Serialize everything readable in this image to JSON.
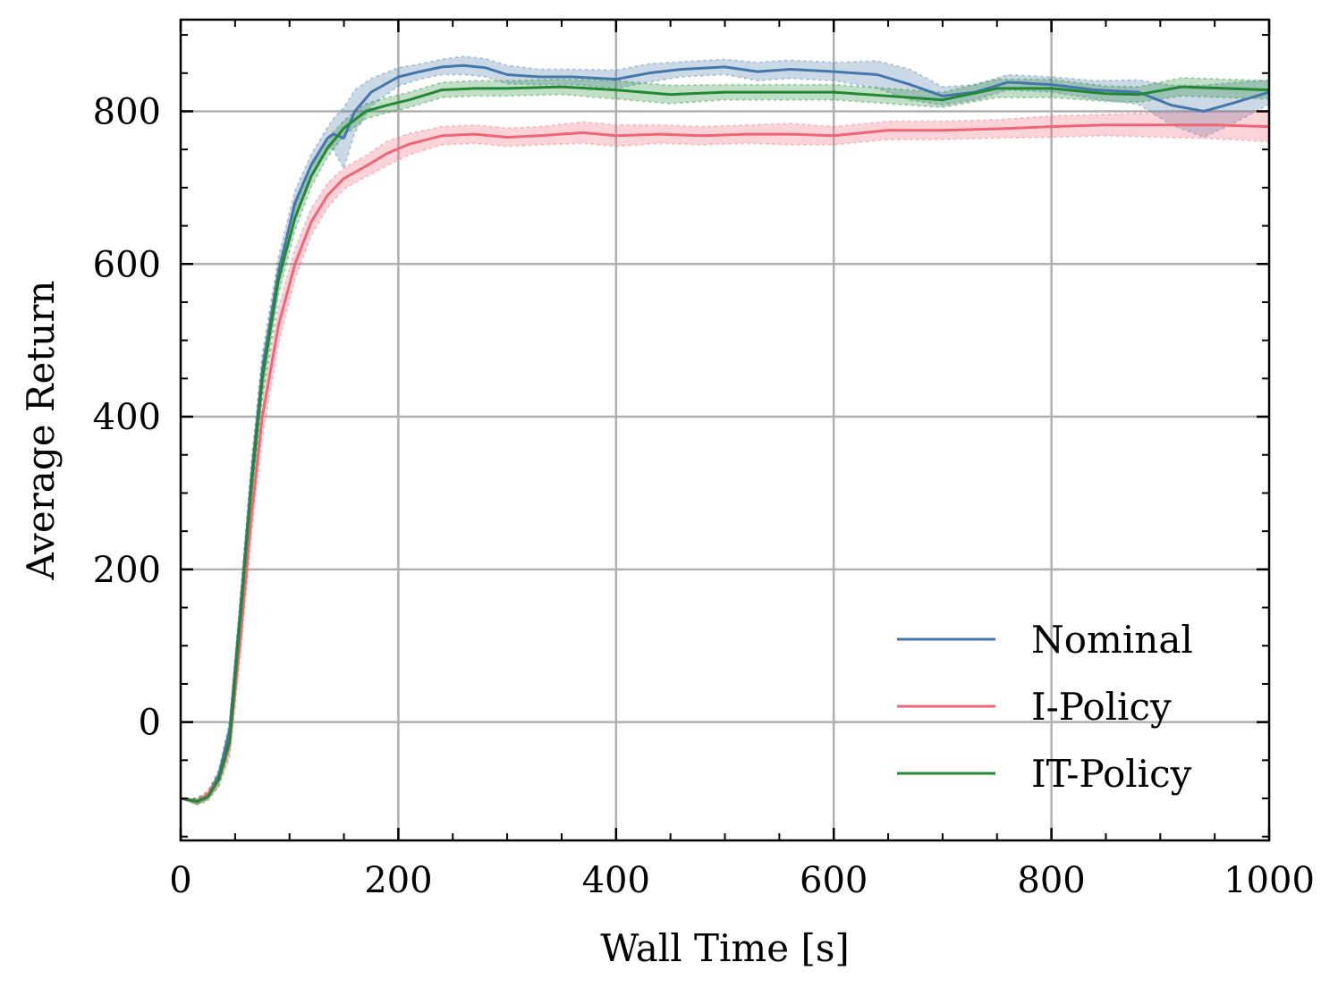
{
  "chart_data": {
    "type": "line",
    "title": "",
    "xlabel": "Wall Time [s]",
    "ylabel": "Average Return",
    "xlim": [
      0,
      1000
    ],
    "ylim": [
      -155,
      920
    ],
    "xticks": [
      0,
      200,
      400,
      600,
      800,
      1000
    ],
    "yticks": [
      0,
      200,
      400,
      600,
      800
    ],
    "grid": true,
    "legend_position": "lower-right",
    "series": [
      {
        "name": "Nominal",
        "color": "#4477AA",
        "x": [
          0,
          15,
          25,
          35,
          45,
          55,
          65,
          75,
          90,
          105,
          120,
          135,
          140,
          150,
          160,
          175,
          200,
          220,
          240,
          260,
          280,
          300,
          330,
          360,
          400,
          430,
          460,
          500,
          530,
          560,
          600,
          640,
          670,
          700,
          730,
          760,
          800,
          840,
          880,
          910,
          940,
          970,
          1000
        ],
        "y": [
          -100,
          -104,
          -96,
          -70,
          -10,
          150,
          320,
          460,
          590,
          680,
          730,
          765,
          770,
          765,
          800,
          825,
          845,
          852,
          858,
          860,
          857,
          848,
          845,
          845,
          842,
          850,
          855,
          858,
          852,
          855,
          852,
          848,
          835,
          820,
          825,
          838,
          835,
          828,
          825,
          808,
          800,
          812,
          825
        ],
        "band": [
          0,
          4,
          4,
          8,
          12,
          18,
          22,
          22,
          20,
          16,
          14,
          14,
          20,
          40,
          28,
          18,
          12,
          10,
          10,
          12,
          12,
          12,
          10,
          10,
          12,
          12,
          10,
          10,
          12,
          12,
          12,
          18,
          20,
          12,
          10,
          10,
          10,
          12,
          16,
          26,
          34,
          26,
          16
        ]
      },
      {
        "name": "I-Policy",
        "color": "#EE6677",
        "x": [
          0,
          15,
          25,
          35,
          45,
          55,
          65,
          75,
          90,
          105,
          120,
          135,
          150,
          170,
          190,
          210,
          240,
          270,
          300,
          330,
          370,
          400,
          440,
          480,
          520,
          560,
          600,
          650,
          700,
          750,
          800,
          850,
          900,
          950,
          1000
        ],
        "y": [
          -100,
          -104,
          -95,
          -75,
          -30,
          110,
          270,
          400,
          520,
          600,
          655,
          690,
          712,
          728,
          745,
          757,
          768,
          770,
          766,
          768,
          772,
          768,
          770,
          768,
          770,
          770,
          768,
          775,
          775,
          777,
          780,
          782,
          782,
          782,
          780
        ],
        "band": [
          0,
          4,
          6,
          10,
          16,
          24,
          28,
          28,
          24,
          20,
          18,
          16,
          14,
          14,
          16,
          14,
          12,
          12,
          12,
          12,
          14,
          14,
          12,
          12,
          12,
          14,
          12,
          12,
          12,
          12,
          14,
          14,
          16,
          18,
          20
        ]
      },
      {
        "name": "IT-Policy",
        "color": "#228833",
        "x": [
          0,
          15,
          25,
          35,
          45,
          55,
          65,
          75,
          90,
          105,
          120,
          135,
          150,
          170,
          190,
          210,
          240,
          270,
          300,
          350,
          400,
          450,
          500,
          550,
          600,
          650,
          700,
          750,
          800,
          850,
          880,
          920,
          960,
          1000
        ],
        "y": [
          -100,
          -104,
          -98,
          -75,
          -25,
          140,
          310,
          450,
          580,
          660,
          715,
          752,
          778,
          800,
          808,
          815,
          828,
          830,
          830,
          832,
          828,
          822,
          825,
          825,
          825,
          820,
          815,
          830,
          830,
          823,
          822,
          832,
          830,
          828
        ],
        "band": [
          0,
          4,
          5,
          9,
          14,
          20,
          24,
          24,
          20,
          16,
          14,
          12,
          10,
          10,
          10,
          10,
          10,
          10,
          10,
          10,
          12,
          12,
          10,
          10,
          10,
          10,
          10,
          12,
          12,
          10,
          10,
          12,
          12,
          12
        ]
      }
    ]
  }
}
